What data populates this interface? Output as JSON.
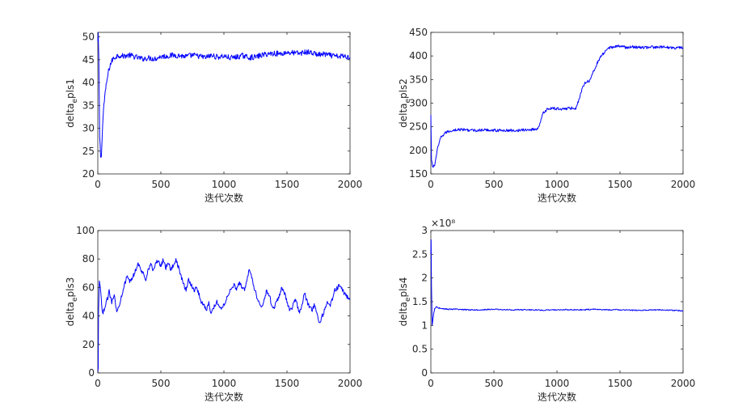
{
  "figure": {
    "background": "#ffffff",
    "line_color": "#0000ff",
    "axis_color": "#262626"
  },
  "chart_data": [
    {
      "type": "line",
      "ylabel": "delta_e pls1",
      "ylabel_main": "delta",
      "ylabel_sub": "e",
      "ylabel_tail": "pls1",
      "xlabel": "迭代次数",
      "xlim": [
        0,
        2000
      ],
      "ylim": [
        20,
        51
      ],
      "xticks": [
        0,
        500,
        1000,
        1500,
        2000
      ],
      "yticks": [
        20,
        25,
        30,
        35,
        40,
        45,
        50
      ],
      "exponent": "",
      "series": [
        {
          "x": [
            0,
            3,
            8,
            15,
            22,
            28,
            35,
            45,
            55,
            70,
            85,
            100,
            120,
            140,
            160,
            200,
            250,
            300,
            350,
            400,
            450,
            500,
            550,
            600,
            650,
            700,
            750,
            800,
            850,
            900,
            950,
            1000,
            1050,
            1100,
            1150,
            1200,
            1250,
            1300,
            1350,
            1400,
            1450,
            1500,
            1550,
            1600,
            1650,
            1700,
            1750,
            1800,
            1850,
            1900,
            1950,
            2000
          ],
          "y": [
            49,
            51,
            45,
            28,
            24,
            23.5,
            29,
            34,
            37,
            40,
            42.5,
            44,
            45.2,
            45.6,
            46,
            45.8,
            46,
            45.6,
            45.2,
            45.4,
            45.2,
            45.7,
            45.8,
            46,
            45.9,
            45.7,
            46,
            45.8,
            45.5,
            45.9,
            45.6,
            45.8,
            45.4,
            45.6,
            45.9,
            45.5,
            45.6,
            46,
            46.3,
            46.4,
            46.3,
            46.6,
            46.5,
            46.4,
            46.7,
            46.5,
            46.1,
            46.2,
            45.9,
            45.7,
            45.8,
            45.5
          ],
          "noise": 0.6
        }
      ]
    },
    {
      "type": "line",
      "ylabel": "delta_e pls2",
      "ylabel_main": "delta",
      "ylabel_sub": "e",
      "ylabel_tail": "pls2",
      "xlabel": "迭代次数",
      "xlim": [
        0,
        2000
      ],
      "ylim": [
        150,
        450
      ],
      "xticks": [
        0,
        500,
        1000,
        1500,
        2000
      ],
      "yticks": [
        150,
        200,
        250,
        300,
        350,
        400,
        450
      ],
      "exponent": "",
      "series": [
        {
          "x": [
            0,
            5,
            15,
            30,
            50,
            80,
            120,
            180,
            250,
            350,
            450,
            550,
            650,
            750,
            800,
            850,
            870,
            890,
            920,
            960,
            1000,
            1050,
            1100,
            1150,
            1170,
            1190,
            1210,
            1230,
            1260,
            1290,
            1320,
            1350,
            1380,
            1420,
            1460,
            1500,
            1550,
            1600,
            1650,
            1700,
            1750,
            1800,
            1850,
            1900,
            1950,
            2000
          ],
          "y": [
            275,
            178,
            165,
            168,
            200,
            228,
            238,
            243,
            244,
            242,
            243,
            242,
            242,
            243,
            244,
            246,
            262,
            278,
            287,
            289,
            288,
            288,
            289,
            290,
            303,
            322,
            338,
            345,
            348,
            368,
            385,
            400,
            408,
            418,
            420,
            421,
            418,
            419,
            418,
            418,
            419,
            418,
            419,
            418,
            417,
            418
          ],
          "noise": 3
        }
      ]
    },
    {
      "type": "line",
      "ylabel": "delta_e pls3",
      "ylabel_main": "delta",
      "ylabel_sub": "e",
      "ylabel_tail": "pls3",
      "xlabel": "迭代次数",
      "xlim": [
        0,
        2000
      ],
      "ylim": [
        0,
        100
      ],
      "xticks": [
        0,
        500,
        1000,
        1500,
        2000
      ],
      "yticks": [
        0,
        20,
        40,
        60,
        80,
        100
      ],
      "exponent": "",
      "series": [
        {
          "x": [
            0,
            3,
            6,
            12,
            20,
            35,
            50,
            70,
            90,
            110,
            130,
            150,
            170,
            190,
            210,
            230,
            260,
            290,
            320,
            340,
            360,
            380,
            400,
            420,
            440,
            460,
            480,
            500,
            520,
            540,
            560,
            580,
            600,
            620,
            640,
            660,
            680,
            700,
            720,
            740,
            760,
            780,
            800,
            820,
            840,
            860,
            880,
            900,
            920,
            940,
            960,
            980,
            1000,
            1020,
            1040,
            1060,
            1080,
            1100,
            1120,
            1140,
            1160,
            1180,
            1200,
            1220,
            1240,
            1260,
            1280,
            1300,
            1320,
            1340,
            1360,
            1380,
            1400,
            1420,
            1440,
            1460,
            1480,
            1500,
            1520,
            1540,
            1560,
            1580,
            1600,
            1620,
            1640,
            1660,
            1680,
            1700,
            1720,
            1740,
            1760,
            1780,
            1800,
            1820,
            1840,
            1860,
            1880,
            1900,
            1920,
            1940,
            1960,
            1980,
            2000
          ],
          "y": [
            0,
            3,
            42,
            65,
            60,
            42,
            44,
            50,
            57,
            50,
            56,
            42,
            48,
            55,
            62,
            67,
            64,
            70,
            77,
            72,
            70,
            66,
            73,
            76,
            72,
            77,
            79,
            75,
            80,
            74,
            78,
            72,
            76,
            80,
            74,
            68,
            62,
            58,
            66,
            62,
            58,
            60,
            56,
            50,
            48,
            44,
            50,
            41,
            46,
            50,
            48,
            45,
            48,
            52,
            56,
            60,
            62,
            59,
            63,
            61,
            58,
            64,
            72,
            68,
            60,
            54,
            50,
            46,
            52,
            58,
            54,
            48,
            46,
            50,
            55,
            60,
            56,
            50,
            44,
            46,
            52,
            48,
            42,
            48,
            56,
            50,
            46,
            44,
            48,
            40,
            34,
            40,
            44,
            50,
            47,
            52,
            58,
            60,
            62,
            58,
            55,
            53,
            52
          ],
          "noise": 1.6
        }
      ]
    },
    {
      "type": "line",
      "ylabel": "delta_e pls4",
      "ylabel_main": "delta",
      "ylabel_sub": "e",
      "ylabel_tail": "pls4",
      "xlabel": "迭代次数",
      "xlim": [
        0,
        2000
      ],
      "ylim": [
        0,
        3
      ],
      "xticks": [
        0,
        500,
        1000,
        1500,
        2000
      ],
      "yticks": [
        0,
        0.5,
        1,
        1.5,
        2,
        2.5,
        3
      ],
      "exponent": "×10⁸",
      "series": [
        {
          "x": [
            0,
            2,
            5,
            10,
            20,
            30,
            45,
            60,
            80,
            100,
            150,
            200,
            300,
            400,
            500,
            600,
            700,
            800,
            900,
            1000,
            1100,
            1200,
            1300,
            1400,
            1500,
            1600,
            1700,
            1800,
            1900,
            2000
          ],
          "y": [
            2.5,
            2.8,
            1.8,
            1.0,
            1.2,
            1.35,
            1.4,
            1.37,
            1.36,
            1.35,
            1.34,
            1.34,
            1.33,
            1.33,
            1.34,
            1.33,
            1.33,
            1.33,
            1.32,
            1.33,
            1.33,
            1.33,
            1.34,
            1.33,
            1.33,
            1.32,
            1.32,
            1.33,
            1.32,
            1.31
          ],
          "noise": 0.012
        }
      ]
    }
  ]
}
